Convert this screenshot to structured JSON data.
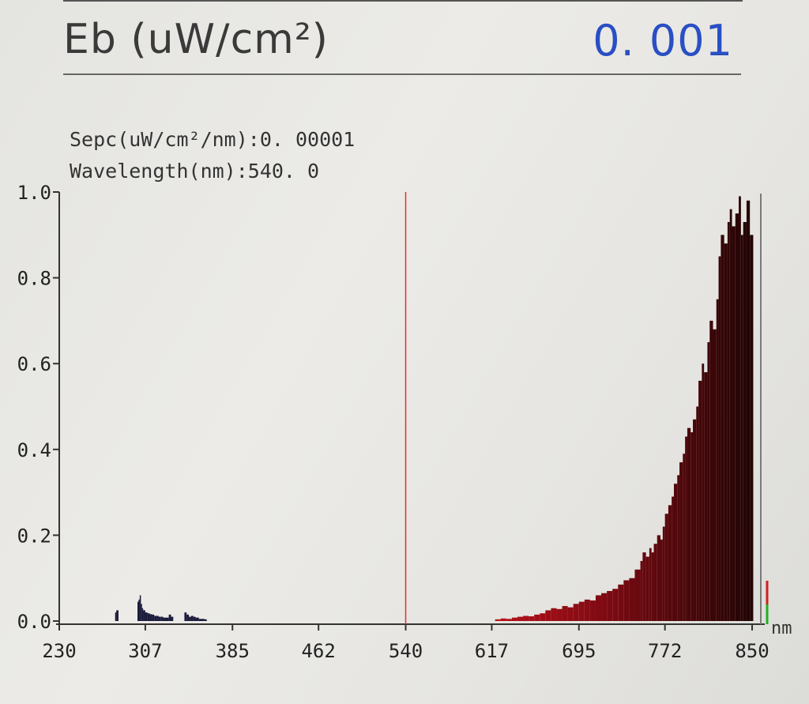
{
  "header": {
    "title": "Eb (uW/cm²)",
    "value": "0. 001"
  },
  "readout": {
    "sepc": "Sepc(uW/cm²/nm):0. 00001",
    "wavelength": "Wavelength(nm):540. 0"
  },
  "chart_data": {
    "type": "bar",
    "xlabel": "nm",
    "ylabel": "",
    "xlim": [
      230,
      850
    ],
    "ylim": [
      0,
      1.0
    ],
    "x_ticks": [
      "230",
      "307",
      "385",
      "462",
      "540",
      "617",
      "695",
      "772",
      "850"
    ],
    "y_ticks": [
      "0.0",
      "0.2",
      "0.4",
      "0.6",
      "0.8",
      "1.0"
    ],
    "cursor_nm": 540.0,
    "series": [
      {
        "color": "#6a0c10",
        "points": [
          [
            280,
            0.02
          ],
          [
            281,
            0.025
          ],
          [
            300,
            0.045
          ],
          [
            301,
            0.05
          ],
          [
            302,
            0.06
          ],
          [
            303,
            0.04
          ],
          [
            304,
            0.03
          ],
          [
            305,
            0.025
          ],
          [
            307,
            0.02
          ],
          [
            309,
            0.018
          ],
          [
            311,
            0.016
          ],
          [
            313,
            0.015
          ],
          [
            315,
            0.012
          ],
          [
            317,
            0.012
          ],
          [
            319,
            0.01
          ],
          [
            321,
            0.01
          ],
          [
            323,
            0.008
          ],
          [
            328,
            0.015
          ],
          [
            330,
            0.01
          ],
          [
            342,
            0.02
          ],
          [
            344,
            0.015
          ],
          [
            346,
            0.01
          ],
          [
            348,
            0.012
          ],
          [
            350,
            0.01
          ],
          [
            352,
            0.008
          ],
          [
            355,
            0.005
          ],
          [
            360,
            0.004
          ],
          [
            620,
            0.004
          ],
          [
            625,
            0.006
          ],
          [
            630,
            0.005
          ],
          [
            635,
            0.008
          ],
          [
            640,
            0.01
          ],
          [
            645,
            0.012
          ],
          [
            650,
            0.011
          ],
          [
            655,
            0.015
          ],
          [
            660,
            0.018
          ],
          [
            665,
            0.025
          ],
          [
            670,
            0.03
          ],
          [
            675,
            0.028
          ],
          [
            680,
            0.035
          ],
          [
            685,
            0.032
          ],
          [
            690,
            0.04
          ],
          [
            695,
            0.045
          ],
          [
            700,
            0.05
          ],
          [
            705,
            0.048
          ],
          [
            710,
            0.06
          ],
          [
            715,
            0.065
          ],
          [
            720,
            0.07
          ],
          [
            725,
            0.075
          ],
          [
            730,
            0.085
          ],
          [
            735,
            0.095
          ],
          [
            740,
            0.1
          ],
          [
            745,
            0.12
          ],
          [
            750,
            0.14
          ],
          [
            752,
            0.16
          ],
          [
            755,
            0.15
          ],
          [
            758,
            0.17
          ],
          [
            760,
            0.16
          ],
          [
            762,
            0.18
          ],
          [
            765,
            0.2
          ],
          [
            768,
            0.19
          ],
          [
            770,
            0.22
          ],
          [
            772,
            0.25
          ],
          [
            775,
            0.27
          ],
          [
            778,
            0.29
          ],
          [
            780,
            0.32
          ],
          [
            783,
            0.34
          ],
          [
            785,
            0.37
          ],
          [
            788,
            0.39
          ],
          [
            790,
            0.43
          ],
          [
            792,
            0.45
          ],
          [
            795,
            0.44
          ],
          [
            797,
            0.47
          ],
          [
            800,
            0.5
          ],
          [
            802,
            0.56
          ],
          [
            805,
            0.6
          ],
          [
            807,
            0.58
          ],
          [
            810,
            0.65
          ],
          [
            812,
            0.7
          ],
          [
            815,
            0.68
          ],
          [
            818,
            0.75
          ],
          [
            820,
            0.85
          ],
          [
            822,
            0.9
          ],
          [
            825,
            0.88
          ],
          [
            828,
            0.93
          ],
          [
            830,
            0.96
          ],
          [
            832,
            0.92
          ],
          [
            835,
            0.95
          ],
          [
            838,
            0.99
          ],
          [
            840,
            0.9
          ],
          [
            842,
            0.93
          ],
          [
            845,
            0.98
          ],
          [
            848,
            0.9
          ]
        ]
      }
    ]
  }
}
